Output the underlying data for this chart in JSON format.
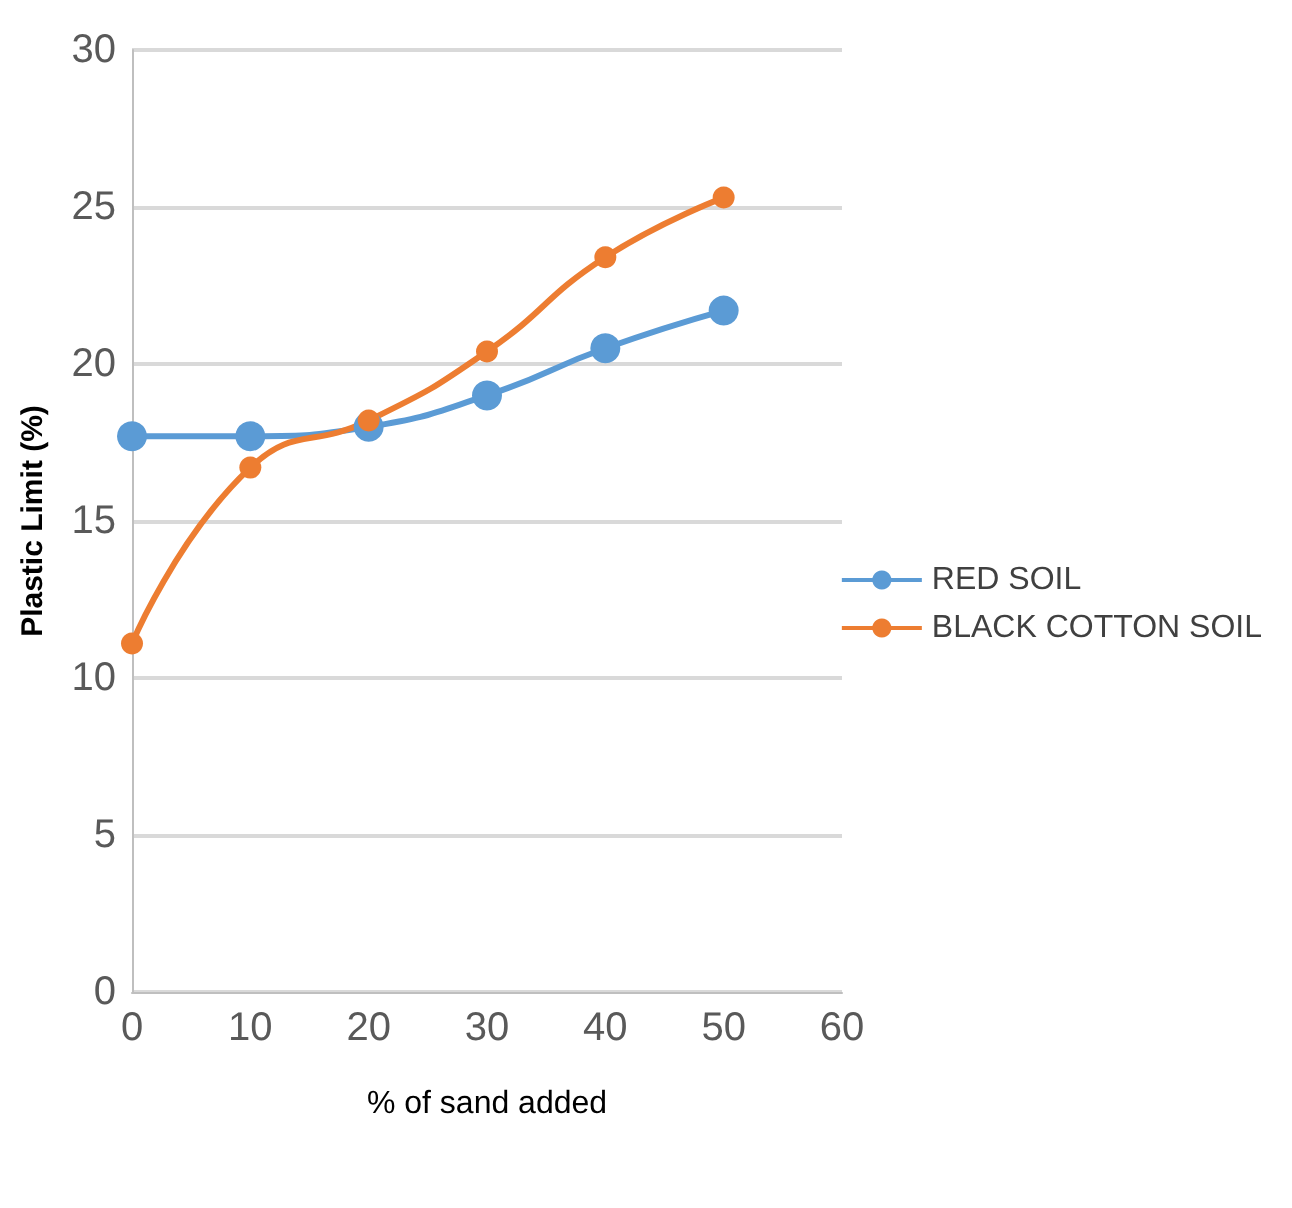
{
  "chart_data": {
    "type": "line",
    "xlabel": "% of sand added",
    "ylabel": "Plastic Limit (%)",
    "x": [
      0,
      10,
      20,
      30,
      40,
      50
    ],
    "series": [
      {
        "name": "RED SOIL",
        "color": "#5b9bd5",
        "values": [
          17.7,
          17.7,
          18.0,
          19.0,
          20.5,
          21.7
        ]
      },
      {
        "name": "BLACK COTTON SOIL",
        "color": "#ed7d31",
        "values": [
          11.1,
          16.7,
          18.2,
          20.4,
          23.4,
          25.3
        ]
      }
    ],
    "xlim": [
      0,
      60
    ],
    "xticks": [
      0,
      10,
      20,
      30,
      40,
      50,
      60
    ],
    "ylim": [
      0,
      30
    ],
    "yticks": [
      0,
      5,
      10,
      15,
      20,
      25,
      30
    ],
    "grid": "y",
    "legend": "right",
    "marker": "circle",
    "line_style": "solid"
  }
}
